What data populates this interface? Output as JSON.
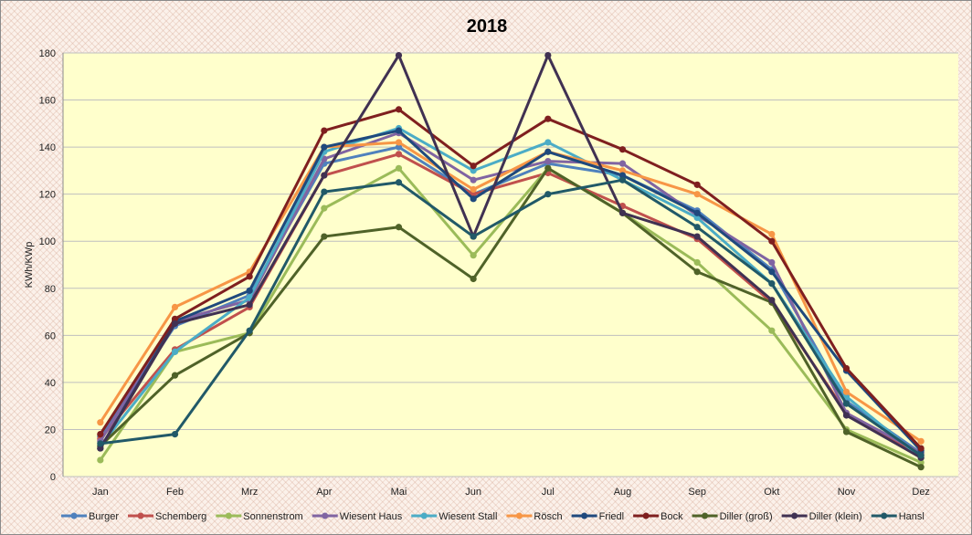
{
  "chart_data": {
    "type": "line",
    "title": "2018",
    "xlabel": "",
    "ylabel": "KWh/KWp",
    "ylim": [
      0,
      180
    ],
    "yticks": [
      0,
      20,
      40,
      60,
      80,
      100,
      120,
      140,
      160,
      180
    ],
    "categories": [
      "Jan",
      "Feb",
      "Mrz",
      "Apr",
      "Mai",
      "Jun",
      "Jul",
      "Aug",
      "Sep",
      "Okt",
      "Nov",
      "Dez"
    ],
    "grid": true,
    "legend_position": "bottom",
    "series": [
      {
        "name": "Burger",
        "color": "#4f81bd",
        "values": [
          17,
          64,
          77,
          133,
          140,
          120,
          133,
          128,
          113,
          88,
          32,
          10
        ]
      },
      {
        "name": "Schemberg",
        "color": "#c0504d",
        "values": [
          16,
          54,
          72,
          128,
          137,
          120,
          129,
          115,
          101,
          74,
          27,
          9
        ]
      },
      {
        "name": "Sonnenstrom",
        "color": "#9bbb59",
        "values": [
          7,
          53,
          61,
          114,
          131,
          94,
          131,
          112,
          91,
          62,
          20,
          6
        ]
      },
      {
        "name": "Wiesent Haus",
        "color": "#8064a2",
        "values": [
          15,
          66,
          75,
          135,
          146,
          126,
          134,
          133,
          111,
          91,
          27,
          10
        ]
      },
      {
        "name": "Wiesent Stall",
        "color": "#4bacc6",
        "values": [
          13,
          53,
          76,
          138,
          148,
          130,
          142,
          126,
          110,
          82,
          34,
          8
        ]
      },
      {
        "name": "Rösch",
        "color": "#f79646",
        "values": [
          23,
          72,
          87,
          140,
          142,
          122,
          138,
          130,
          120,
          103,
          36,
          15
        ]
      },
      {
        "name": "Friedl",
        "color": "#1f497d",
        "values": [
          12,
          66,
          79,
          140,
          147,
          118,
          138,
          128,
          112,
          87,
          45,
          11
        ]
      },
      {
        "name": "Bock",
        "color": "#7f1f1f",
        "values": [
          18,
          67,
          85,
          147,
          156,
          132,
          152,
          139,
          124,
          100,
          46,
          12
        ]
      },
      {
        "name": "Diller (groß)",
        "color": "#4f6228",
        "values": [
          13,
          43,
          61,
          102,
          106,
          84,
          131,
          112,
          87,
          74,
          19,
          4
        ]
      },
      {
        "name": "Diller (klein)",
        "color": "#403152",
        "values": [
          12,
          65,
          73,
          128,
          179,
          102,
          179,
          112,
          102,
          75,
          26,
          8
        ]
      },
      {
        "name": "Hansl",
        "color": "#215968",
        "values": [
          14,
          18,
          62,
          121,
          125,
          102,
          120,
          126,
          106,
          82,
          31,
          9
        ]
      }
    ]
  }
}
